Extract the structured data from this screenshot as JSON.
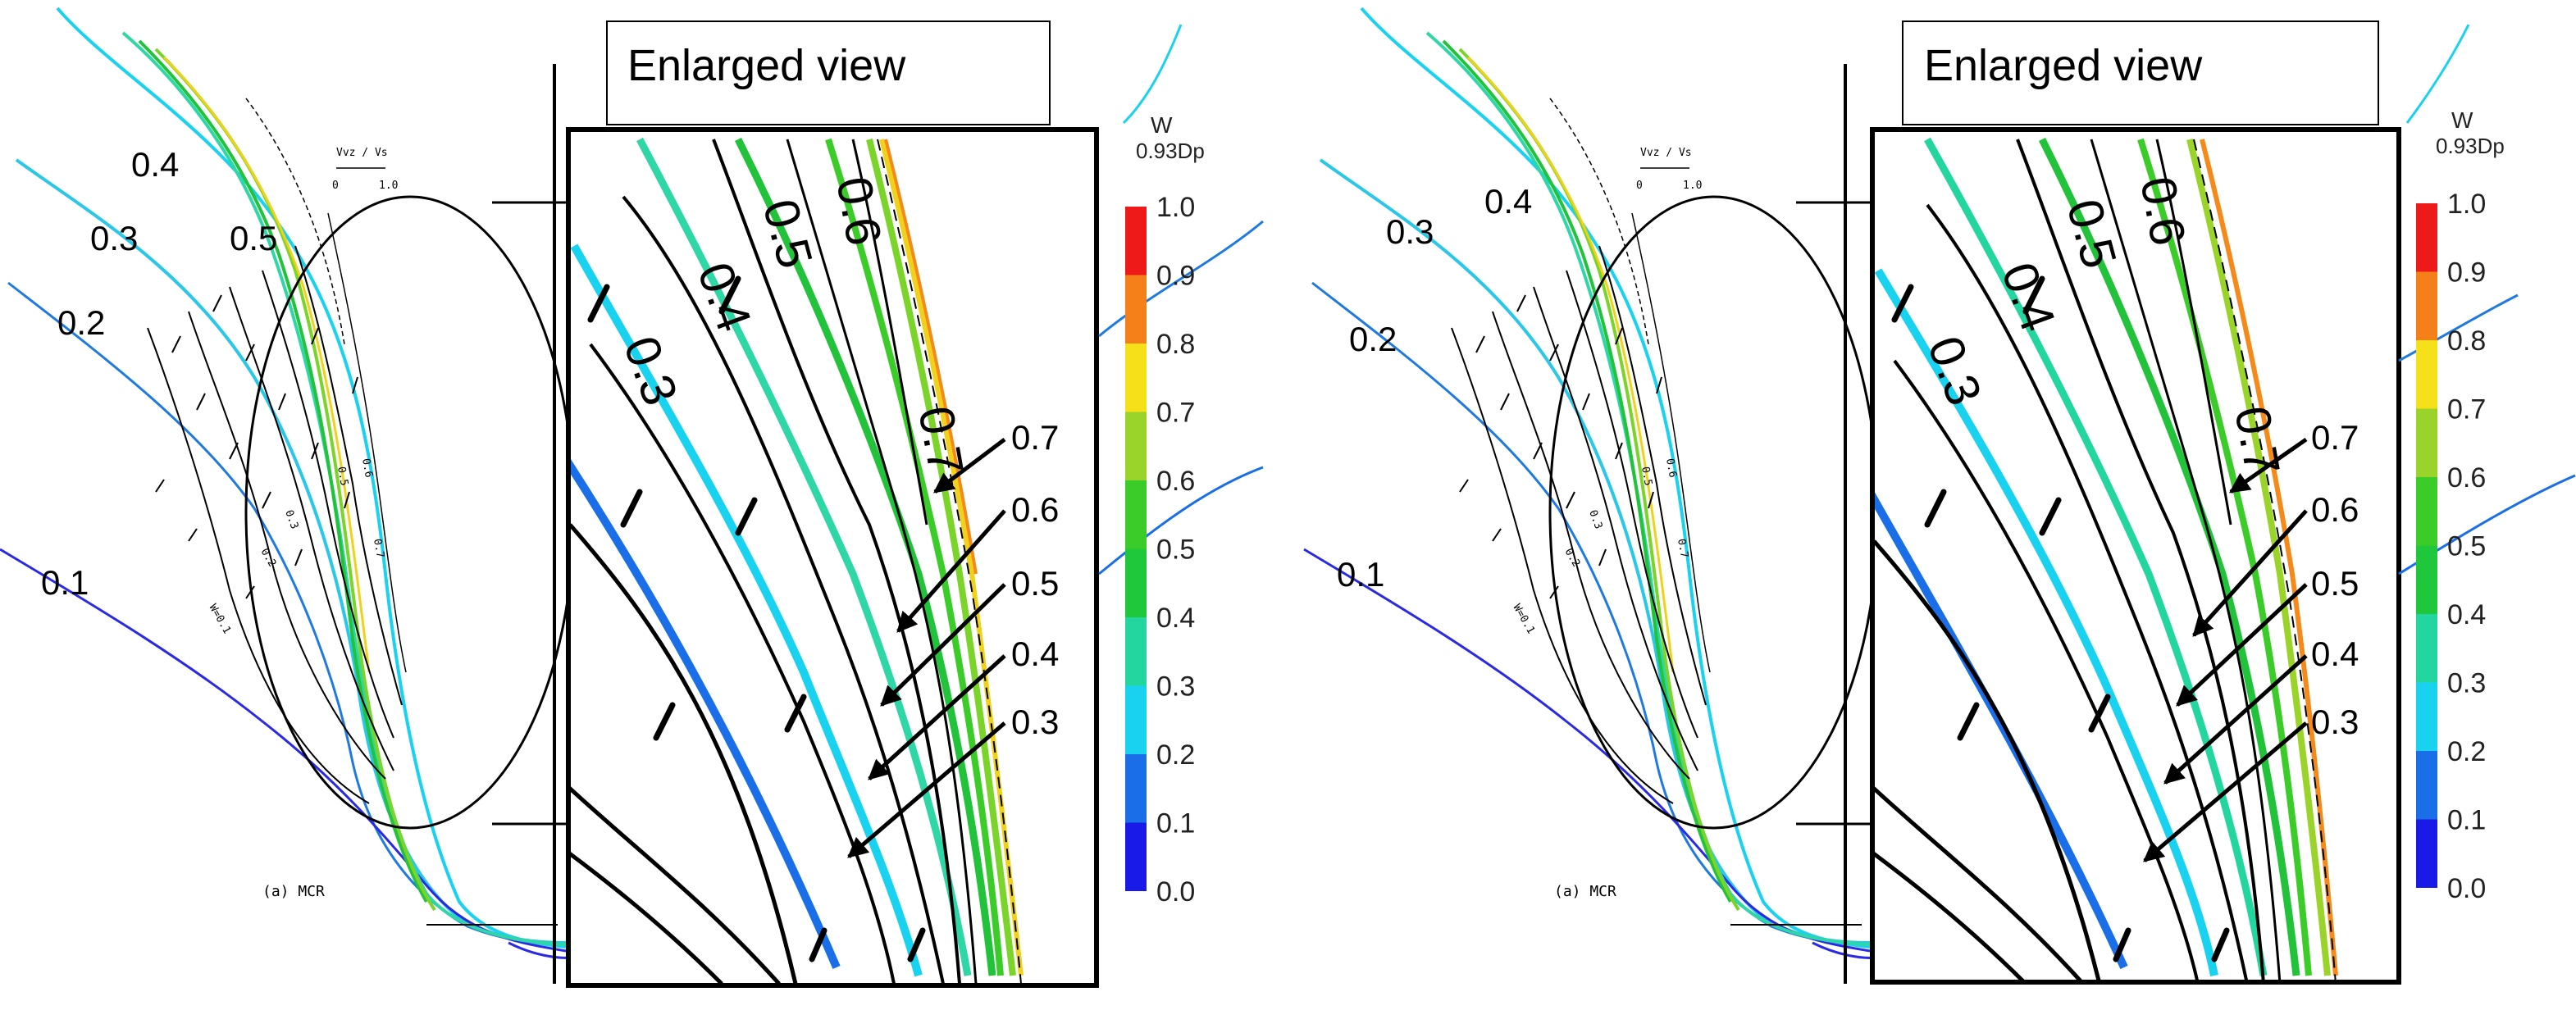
{
  "panels": [
    {
      "enlarged_title": "Enlarged view",
      "wake_labels": [
        "0.4",
        "0.3",
        "0.5",
        "0.2",
        "0.1"
      ],
      "scale_text": "Vvz / Vs",
      "scale_ticks": [
        "0",
        "1.0"
      ],
      "condition_label": "(a) MCR",
      "arrow_labels": [
        "0.7",
        "0.6",
        "0.5",
        "0.4",
        "0.3"
      ],
      "inset_contour_labels": [
        "0.3",
        "0.4",
        "0.5",
        "0.6",
        "0.7"
      ],
      "colorbar": {
        "title": "W",
        "subtitle": "0.93Dp",
        "ticks": [
          "1.0",
          "0.9",
          "0.8",
          "0.7",
          "0.6",
          "0.5",
          "0.4",
          "0.3",
          "0.2",
          "0.1",
          "0.0"
        ]
      }
    },
    {
      "enlarged_title": "Enlarged view",
      "wake_labels": [
        "0.3",
        "0.4",
        "0.2",
        "0.1"
      ],
      "scale_text": "Vvz / Vs",
      "scale_ticks": [
        "0",
        "1.0"
      ],
      "condition_label": "(a) MCR",
      "arrow_labels": [
        "0.7",
        "0.6",
        "0.5",
        "0.4",
        "0.3"
      ],
      "inset_contour_labels": [
        "0.3",
        "0.4",
        "0.5",
        "0.6",
        "0.7"
      ],
      "colorbar": {
        "title": "W",
        "subtitle": "0.93Dp",
        "ticks": [
          "1.0",
          "0.9",
          "0.8",
          "0.7",
          "0.6",
          "0.5",
          "0.4",
          "0.3",
          "0.2",
          "0.1",
          "0.0"
        ]
      }
    }
  ],
  "colors": {
    "level_0_1": "#2a2ae6",
    "level_0_2": "#1f7ae0",
    "level_0_3": "#29c7e8",
    "level_0_4": "#2fd6a6",
    "level_0_5": "#22c23a",
    "level_0_6": "#7ad42a",
    "level_0_7": "#f0d21a",
    "level_0_8": "#f58a1a",
    "level_0_9": "#f04a1a",
    "level_1_0": "#e81a1a"
  }
}
